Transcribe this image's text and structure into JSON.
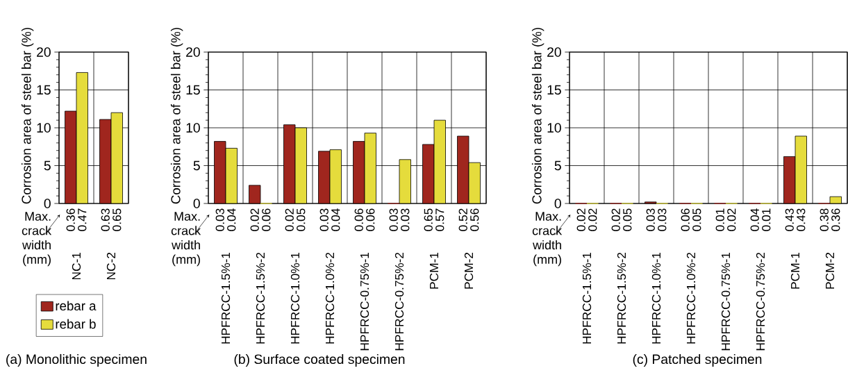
{
  "chart_data": [
    {
      "type": "bar",
      "title": "(a) Monolithic specimen",
      "ylabel": "Corrosion area of steel bar (%)",
      "categories": [
        "NC-1",
        "NC-2"
      ],
      "series": [
        {
          "name": "rebar a",
          "color": "#a0261e",
          "values": [
            12.2,
            11.1
          ]
        },
        {
          "name": "rebar b",
          "color": "#e5dc3c",
          "values": [
            17.3,
            12.0
          ]
        }
      ],
      "ylim": [
        0,
        20
      ],
      "yticks": [
        0,
        5,
        10,
        15,
        20
      ],
      "grid": true,
      "legend": "bottom",
      "annotations": [
        "Max. crack width (mm)",
        "0.36",
        "0.47",
        "0.63",
        "0.65"
      ]
    },
    {
      "type": "bar",
      "title": "(b) Surface coated specimen",
      "ylabel": "Corrosion area of steel bar (%)",
      "categories": [
        "HPFRCC-1.5%-1",
        "HPFRCC-1.5%-2",
        "HPFRCC-1.0%-1",
        "HPFRCC-1.0%-2",
        "HPFRCC-0.75%-1",
        "HPFRCC-0.75%-2",
        "PCM-1",
        "PCM-2"
      ],
      "series": [
        {
          "color": "#a0261e",
          "values": [
            8.2,
            2.4,
            10.4,
            6.9,
            8.2,
            0,
            7.8,
            8.9
          ]
        },
        {
          "color": "#e5dc3c",
          "values": [
            7.3,
            0,
            10.0,
            7.1,
            9.3,
            5.8,
            11.0,
            5.4
          ]
        }
      ],
      "ylim": [
        0,
        20
      ],
      "yticks": [
        0,
        5,
        10,
        15,
        20
      ],
      "grid": true,
      "annotations": [
        "Max. crack width (mm)",
        "0.03",
        "0.04",
        "0.02",
        "0.06",
        "0.02",
        "0.05",
        "0.03",
        "0.04",
        "0.06",
        "0.06",
        "0.03",
        "0.03",
        "0.65",
        "0.57",
        "0.52",
        "0.56"
      ]
    },
    {
      "type": "bar",
      "title": "(c) Patched specimen",
      "ylabel": "Corrosion area of steel bar (%)",
      "categories": [
        "HPFRCC-1.5%-1",
        "HPFRCC-1.5%-2",
        "HPFRCC-1.0%-1",
        "HPFRCC-1.0%-2",
        "HPFRCC-0.75%-1",
        "HPFRCC-0.75%-2",
        "PCM-1",
        "PCM-2"
      ],
      "series": [
        {
          "color": "#a0261e",
          "values": [
            0,
            0,
            0.2,
            0,
            0,
            0,
            6.2,
            0
          ]
        },
        {
          "color": "#e5dc3c",
          "values": [
            0,
            0,
            0,
            0,
            0,
            0,
            8.9,
            0.9
          ]
        }
      ],
      "ylim": [
        0,
        20
      ],
      "yticks": [
        0,
        5,
        10,
        15,
        20
      ],
      "grid": true,
      "annotations": [
        "Max. crack width (mm)",
        "0.02",
        "0.02",
        "0.02",
        "0.05",
        "0.03",
        "0.03",
        "0.06",
        "0.05",
        "0.01",
        "0.02",
        "0.04",
        "0.01",
        "0.43",
        "0.43",
        "0.38",
        "0.36"
      ]
    }
  ]
}
